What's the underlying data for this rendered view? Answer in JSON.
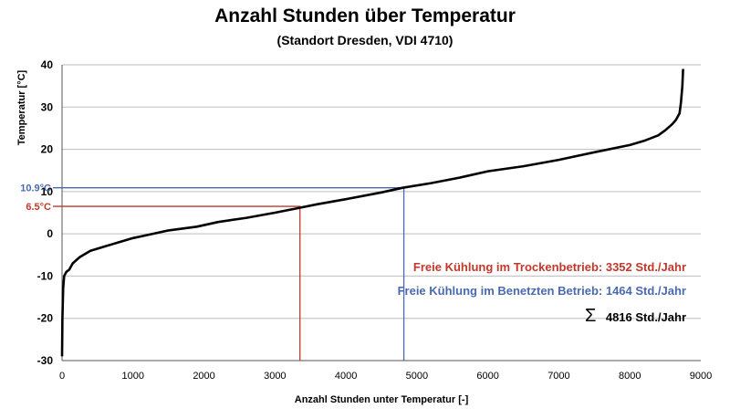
{
  "chart_data": {
    "type": "line",
    "title": "Anzahl Stunden über Temperatur",
    "subtitle": "(Standort Dresden, VDI 4710)",
    "xlabel": "Anzahl Stunden unter Temperatur [-]",
    "ylabel": "Temperatur [°C]",
    "xlim": [
      0,
      9000
    ],
    "ylim": [
      -30,
      40
    ],
    "x_ticks": [
      0,
      1000,
      2000,
      3000,
      4000,
      5000,
      6000,
      7000,
      8000,
      9000
    ],
    "y_ticks": [
      40,
      30,
      20,
      10,
      0,
      -10,
      -20,
      -30
    ],
    "grid": "horizontal",
    "series": [
      {
        "name": "Temperatur",
        "color": "#000000",
        "x": [
          0,
          5,
          15,
          30,
          60,
          100,
          150,
          250,
          400,
          600,
          800,
          1000,
          1200,
          1500,
          1900,
          2200,
          2600,
          3000,
          3300,
          3600,
          4000,
          4500,
          4800,
          5200,
          5600,
          6000,
          6500,
          7000,
          7500,
          8000,
          8200,
          8400,
          8500,
          8600,
          8650,
          8700,
          8720,
          8740,
          8750
        ],
        "y": [
          -29,
          -20,
          -13,
          -10,
          -9,
          -8.5,
          -7,
          -5.5,
          -4,
          -3,
          -2,
          -1,
          -0.3,
          0.8,
          1.7,
          2.8,
          3.8,
          5,
          6,
          7,
          8.2,
          9.8,
          10.9,
          12,
          13.3,
          14.8,
          16,
          17.5,
          19.3,
          21,
          22,
          23.3,
          24.5,
          26,
          27,
          28.5,
          31,
          35,
          39
        ]
      }
    ],
    "reference_lines": [
      {
        "label": "10.9°C",
        "y": 10.9,
        "x": 4816,
        "color": "#4a6ab0"
      },
      {
        "label": "6.5°C",
        "y": 6.5,
        "x": 3352,
        "color": "#c0392b"
      }
    ],
    "annotations": [
      {
        "text": "Freie Kühlung im Trockenbetrieb:  3352 Std./Jahr",
        "color": "#c0392b"
      },
      {
        "text": "Freie Kühlung im Benetzten Betrieb:  1464 Std./Jahr",
        "color": "#4a6ab0"
      },
      {
        "symbol": "Σ",
        "text": "4816 Std./Jahr",
        "color": "#000000"
      }
    ]
  }
}
